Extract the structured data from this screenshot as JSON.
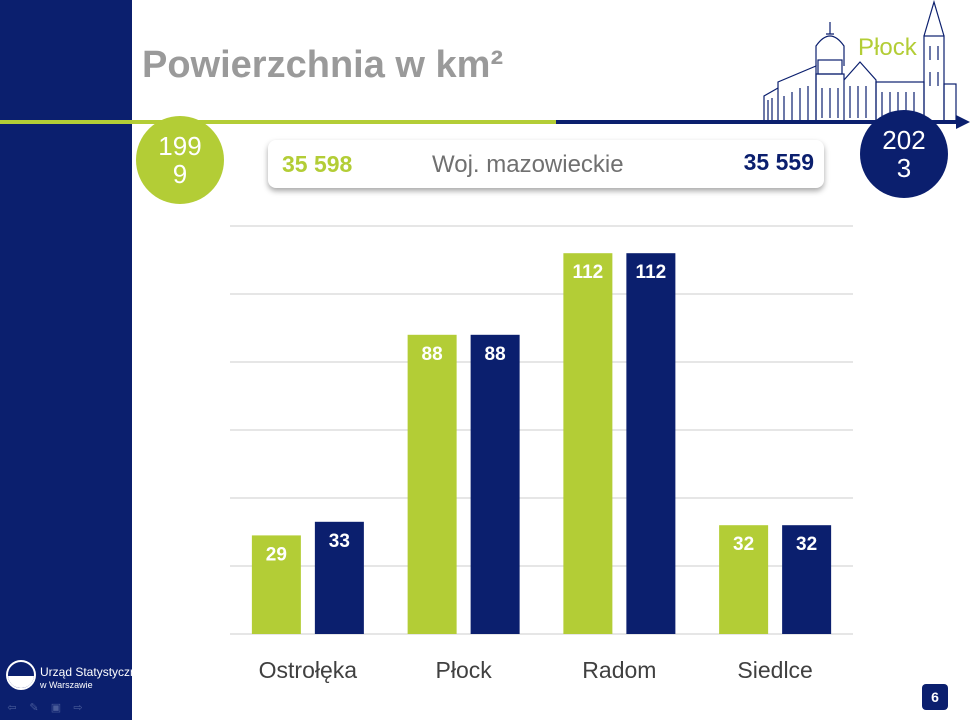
{
  "title": "Powierzchnia w km²",
  "city_name": "Płock",
  "timeline": {
    "start_year": "1999",
    "end_year": "2023"
  },
  "colors": {
    "primary": "#0b1f6e",
    "accent": "#b3cd36",
    "title": "#9a9a9a"
  },
  "voivodeship": {
    "label": "Woj. mazowieckie",
    "value_1999": "35 598",
    "value_2023": "35 559"
  },
  "logo": {
    "line1": "Urząd Statystyczny",
    "line2": "w Warszawie"
  },
  "nav_icons": [
    "arrow-left-icon",
    "pencil-icon",
    "menu-icon",
    "arrow-right-icon"
  ],
  "page_number": "6",
  "chart_data": {
    "type": "bar",
    "categories": [
      "Ostrołęka",
      "Płock",
      "Radom",
      "Siedlce"
    ],
    "series": [
      {
        "name": "1999",
        "color": "#b3cd36",
        "values": [
          29,
          88,
          112,
          32
        ]
      },
      {
        "name": "2023",
        "color": "#0b1f6e",
        "values": [
          33,
          88,
          112,
          32
        ]
      }
    ],
    "ylim": [
      0,
      120
    ],
    "grid": true,
    "data_labels": true
  }
}
